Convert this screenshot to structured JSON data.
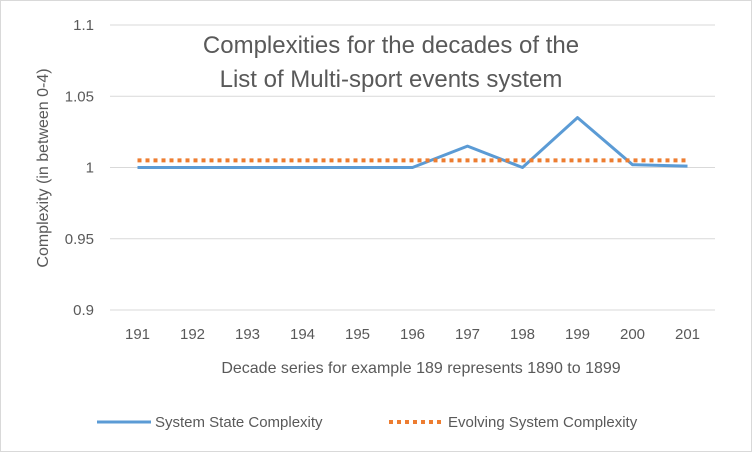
{
  "chart_data": {
    "type": "line",
    "title_lines": [
      "Complexities for the decades of the",
      "List of Multi-sport events system"
    ],
    "xlabel": "Decade series for example 189 represents  1890 to 1899",
    "ylabel": "Complexity (in between 0-4)",
    "categories": [
      "191",
      "192",
      "193",
      "194",
      "195",
      "196",
      "197",
      "198",
      "199",
      "200",
      "201"
    ],
    "ylim": [
      0.9,
      1.1
    ],
    "yticks": [
      0.9,
      0.95,
      1,
      1.05,
      1.1
    ],
    "ytick_labels": [
      "0.9",
      "0.95",
      "1",
      "1.05",
      "1.1"
    ],
    "grid": "horizontal",
    "legend_position": "bottom",
    "series": [
      {
        "name": "System State Complexity",
        "style": "solid",
        "color": "#5b9bd5",
        "values": [
          1.0,
          1.0,
          1.0,
          1.0,
          1.0,
          1.0,
          1.015,
          1.0,
          1.035,
          1.002,
          1.001
        ]
      },
      {
        "name": "Evolving System Complexity",
        "style": "dotted",
        "color": "#ed7d31",
        "values": [
          1.005,
          1.005,
          1.005,
          1.005,
          1.005,
          1.005,
          1.005,
          1.005,
          1.005,
          1.005,
          1.005
        ]
      }
    ]
  }
}
